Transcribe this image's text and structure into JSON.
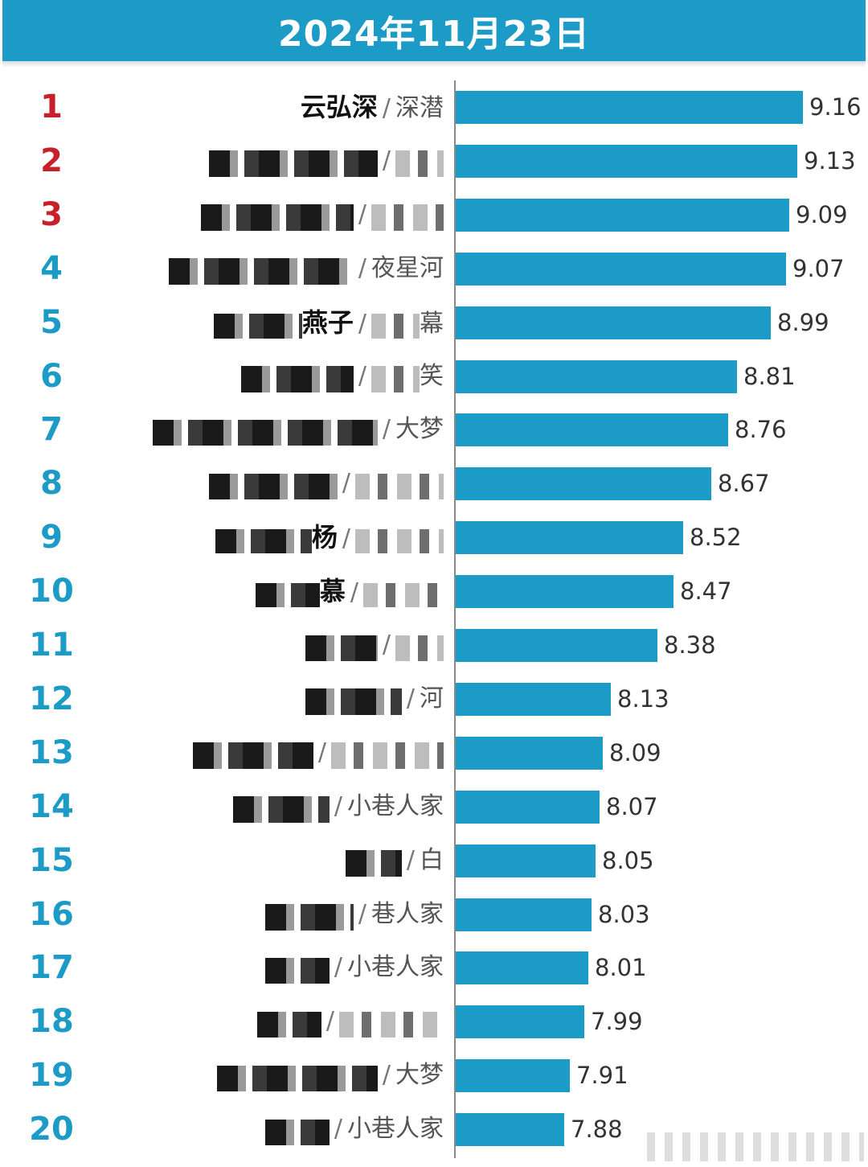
{
  "header": {
    "title": "2024年11月23日"
  },
  "colors": {
    "header_bg": "#1c9bc6",
    "bar": "#1c9bc6",
    "rank_top3": "#c8202a",
    "rank_rest": "#1c9bc6"
  },
  "chart_data": {
    "type": "bar",
    "orientation": "horizontal",
    "title": "2024年11月23日",
    "xlim": [
      7.3,
      9.3
    ],
    "grid": false,
    "legend": "none",
    "ranks": [
      "1",
      "2",
      "3",
      "4",
      "5",
      "6",
      "7",
      "8",
      "9",
      "10",
      "11",
      "12",
      "13",
      "14",
      "15",
      "16",
      "17",
      "18",
      "19",
      "20"
    ],
    "actors": [
      "云弘深",
      "",
      "",
      "",
      "燕子",
      "",
      "",
      "",
      "杨",
      "慕",
      "",
      "",
      "",
      "",
      "",
      "",
      "",
      "",
      "",
      ""
    ],
    "dramas": [
      "深潜",
      "",
      "",
      "夜星河",
      "幕",
      "笑",
      "大梦",
      "",
      "",
      "",
      "",
      "河",
      "",
      "小巷人家",
      "白",
      "巷人家",
      "小巷人家",
      "",
      "大梦",
      "小巷人家"
    ],
    "values": [
      9.16,
      9.13,
      9.09,
      9.07,
      8.99,
      8.81,
      8.76,
      8.67,
      8.52,
      8.47,
      8.38,
      8.13,
      8.09,
      8.07,
      8.05,
      8.03,
      8.01,
      7.99,
      7.91,
      7.88
    ],
    "value_labels": [
      "9.16",
      "9.13",
      "9.09",
      "9.07",
      "8.99",
      "8.81",
      "8.76",
      "8.67",
      "8.52",
      "8.47",
      "8.38",
      "8.13",
      "8.09",
      "8.07",
      "8.05",
      "8.03",
      "8.01",
      "7.99",
      "7.91",
      "7.88"
    ]
  }
}
